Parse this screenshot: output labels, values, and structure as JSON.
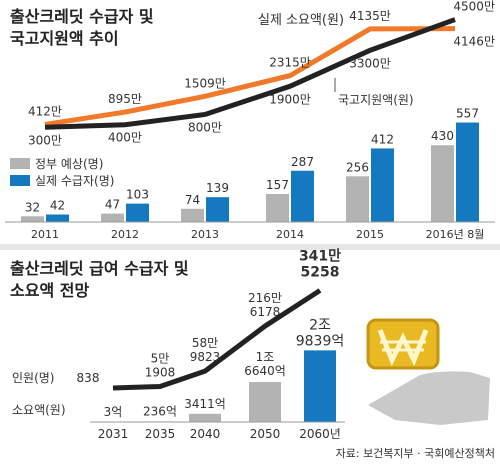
{
  "chart_data": [
    {
      "type": "combo",
      "title": [
        "출산크레딧 수급자 및",
        "국고지원액 추이"
      ],
      "categories": [
        "2011",
        "2012",
        "2013",
        "2014",
        "2015",
        "2016년 8월"
      ],
      "lines": [
        {
          "name": "실제 소요액(원)",
          "color": "#f07a2a",
          "values": [
            412,
            895,
            1509,
            2315,
            4135,
            4146
          ],
          "value_labels": [
            "412만",
            "895만",
            "1509만",
            "2315만",
            "4135만",
            "4146만"
          ]
        },
        {
          "name": "국고지원액(원)",
          "color": "#222222",
          "values": [
            300,
            400,
            800,
            1900,
            3300,
            4500
          ],
          "value_labels": [
            "300만",
            "400만",
            "800만",
            "1900만",
            "3300만",
            "4500만"
          ]
        }
      ],
      "line_ylim": [
        0,
        4600
      ],
      "bars": [
        {
          "name": "정부 예상(명)",
          "color": "#b3b3b3",
          "values": [
            32,
            47,
            74,
            157,
            256,
            430
          ]
        },
        {
          "name": "실제 수급자(명)",
          "color": "#1479be",
          "values": [
            42,
            103,
            139,
            287,
            412,
            557
          ]
        }
      ],
      "bar_ylim": [
        0,
        560
      ]
    },
    {
      "type": "projection",
      "title": [
        "출산크레딧 급여 수급자 및",
        "소요액 전망"
      ],
      "categories": [
        "2031",
        "2035",
        "2040",
        "2050",
        "2060년"
      ],
      "line": {
        "name": "인원(명)",
        "color": "#222222",
        "values": [
          838,
          51908,
          589823,
          2166178,
          3415258
        ],
        "value_labels": [
          [
            "838"
          ],
          [
            "5만",
            "1908"
          ],
          [
            "58만",
            "9823"
          ],
          [
            "216만",
            "6178"
          ],
          [
            "341만",
            "5258"
          ]
        ]
      },
      "line_ylim": [
        0,
        3500000
      ],
      "bars": {
        "name": "소요액(원)",
        "colors": [
          "#b3b3b3",
          "#b3b3b3",
          "#b3b3b3",
          "#b3b3b3",
          "#1479be"
        ],
        "values": [
          3,
          236,
          3411,
          16640,
          29839
        ],
        "value_labels": [
          [
            "3억"
          ],
          [
            "236억"
          ],
          [
            "3411억"
          ],
          [
            "1조",
            "6640억"
          ],
          [
            "2조",
            "9839억"
          ]
        ]
      },
      "bar_ylim": [
        0,
        30000
      ]
    }
  ],
  "source": "자료: 보건복지부 · 국회예산정책처"
}
